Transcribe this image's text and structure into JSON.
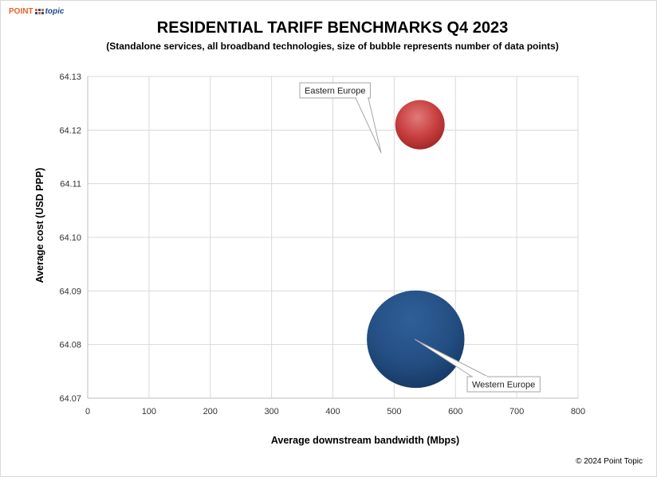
{
  "brand": {
    "point": "POINT",
    "topic": "topic"
  },
  "chart_data": {
    "type": "scatter",
    "title": "RESIDENTIAL TARIFF BENCHMARKS Q4 2023",
    "subtitle": "(Standalone services, all broadband technologies, size of bubble represents number of data points)",
    "xlabel": "Average downstream bandwidth (Mbps)",
    "ylabel": "Average cost (USD PPP)",
    "xlim": [
      0,
      800
    ],
    "ylim": [
      64.07,
      64.13
    ],
    "x_ticks": [
      0,
      100,
      200,
      300,
      400,
      500,
      600,
      700,
      800
    ],
    "y_ticks": [
      "64.07",
      "64.08",
      "64.09",
      "64.10",
      "64.11",
      "64.12",
      "64.13"
    ],
    "grid": true,
    "bubbles": [
      {
        "label": "Eastern Europe",
        "x": 542,
        "y": 64.121,
        "relative_size": 1.0,
        "color": "#c43a3a"
      },
      {
        "label": "Western Europe",
        "x": 535,
        "y": 64.081,
        "relative_size": 3.9,
        "color": "#1f497d"
      }
    ]
  },
  "footer": {
    "copyright": "© 2024 Point Topic"
  }
}
